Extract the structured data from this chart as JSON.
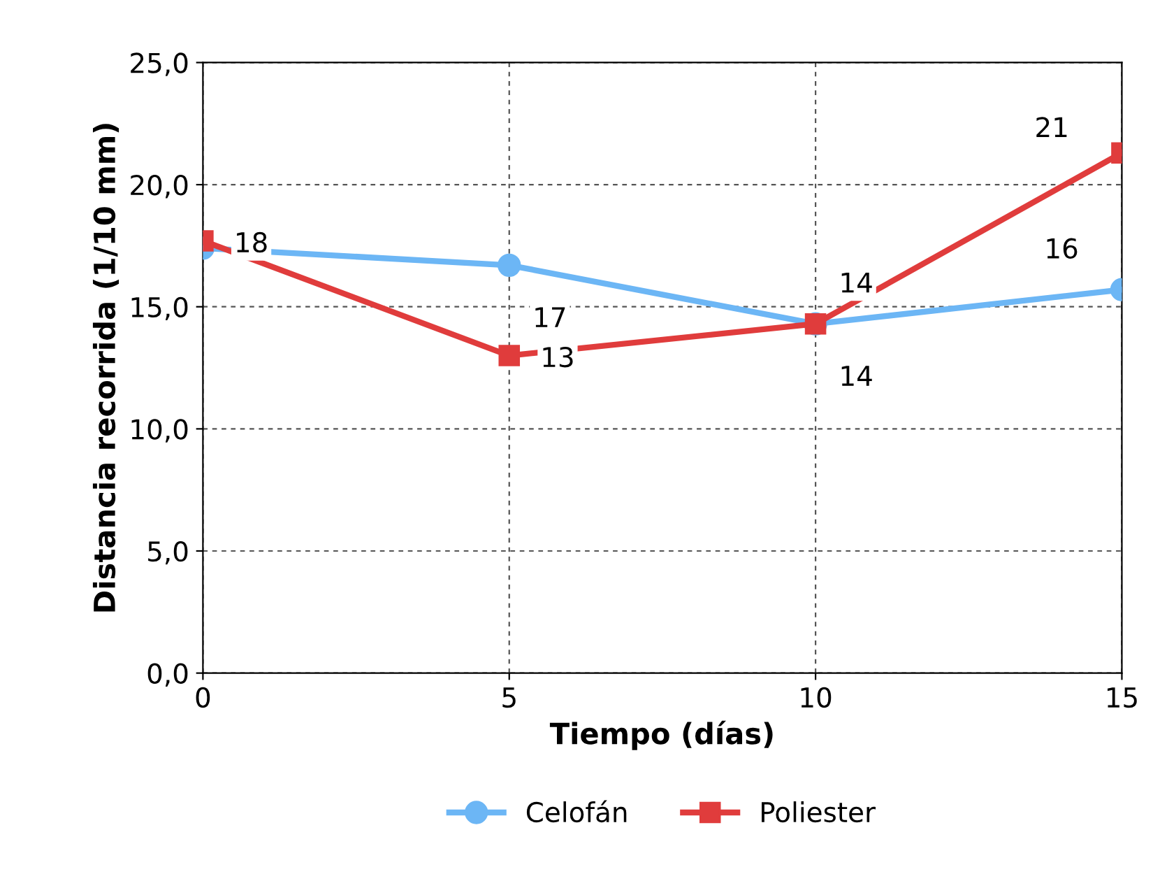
{
  "chart_data": {
    "type": "line",
    "xlabel": "Tiempo (días)",
    "ylabel": "Distancia recorrida (1/10 mm)",
    "x": [
      0,
      5,
      10,
      15
    ],
    "xlim": [
      0,
      15
    ],
    "xticks": [
      0,
      5,
      10,
      15
    ],
    "ylim": [
      0,
      25
    ],
    "yticks": [
      {
        "value": 0,
        "label": "0,0"
      },
      {
        "value": 5,
        "label": "5,0"
      },
      {
        "value": 10,
        "label": "10,0"
      },
      {
        "value": 15,
        "label": "15,0"
      },
      {
        "value": 20,
        "label": "20,0"
      },
      {
        "value": 25,
        "label": "25,0"
      }
    ],
    "grid": true,
    "legend": "bottom",
    "line_style": "solid",
    "series": [
      {
        "name": "Celofán",
        "color": "#6cb6f5",
        "marker": "circle",
        "values": [
          17.4,
          16.7,
          14.3,
          15.7
        ],
        "value_labels": [
          null,
          "17",
          "14",
          "16"
        ]
      },
      {
        "name": "Poliester",
        "color": "#e03c3c",
        "marker": "square",
        "values": [
          17.7,
          13.0,
          14.3,
          21.3
        ],
        "value_labels": [
          "18",
          "13",
          "14",
          "21"
        ]
      }
    ]
  }
}
